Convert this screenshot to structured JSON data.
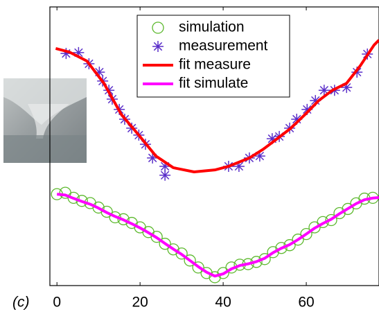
{
  "chart_data": {
    "type": "line",
    "panel_label": "(c)",
    "xlim": [
      -1.7,
      77.5
    ],
    "xticks": [
      0,
      20,
      40,
      60
    ],
    "ylim": [
      0,
      100
    ],
    "legend": "top",
    "series": [
      {
        "name": "simulation",
        "color": "#5cb82d",
        "style": "circle",
        "x": [
          0,
          2,
          4,
          6,
          8,
          10,
          12,
          14,
          16,
          18,
          20,
          22,
          24,
          26,
          28,
          30,
          32,
          34,
          36,
          38,
          40,
          42,
          44,
          46,
          48,
          50,
          52,
          54,
          56,
          58,
          60,
          62,
          64,
          66,
          68,
          70,
          72,
          74,
          76
        ],
        "values": [
          32.8,
          33.3,
          31.5,
          30.4,
          29.6,
          28,
          26.5,
          24.5,
          23.8,
          22.5,
          20.9,
          19.2,
          17.5,
          15,
          13,
          11.5,
          9,
          6.5,
          4.5,
          3,
          4.5,
          6.5,
          7.5,
          7.7,
          8.5,
          9.5,
          12,
          13.5,
          14.5,
          16.5,
          18.5,
          20.9,
          22.8,
          23.5,
          26,
          27.5,
          29.5,
          31.2,
          31.5
        ]
      },
      {
        "name": "measurement",
        "color": "#5b2fc9",
        "style": "star",
        "x": [
          2.2,
          5.2,
          7.7,
          10.2,
          11,
          12.5,
          13.3,
          15,
          16.3,
          18,
          19.7,
          21.3,
          23,
          26,
          26,
          41.3,
          43.8,
          46.3,
          48.8,
          51.8,
          53.5,
          56,
          57.7,
          60.2,
          62.2,
          64.3,
          66.8,
          69.7,
          72.2,
          74.7
        ],
        "values": [
          83.3,
          83.6,
          79.6,
          76.6,
          73.4,
          70.1,
          66.9,
          63.2,
          59.7,
          56.5,
          54,
          50.7,
          45.8,
          42.8,
          39.6,
          42.8,
          42.8,
          45.8,
          46.5,
          52.7,
          53.5,
          56.5,
          59.7,
          63.2,
          66.4,
          70.1,
          70.1,
          71.1,
          76.6,
          83.1
        ]
      },
      {
        "name": "fit measure",
        "color": "#ff0000",
        "style": "line",
        "x": [
          -0.3,
          3,
          7.2,
          11.3,
          15.5,
          19.7,
          23.8,
          28,
          33,
          38,
          41.3,
          46.3,
          49.7,
          53,
          56.3,
          59.7,
          63,
          66.3,
          69.7,
          73,
          76.3,
          77.5
        ],
        "values": [
          85.1,
          83.8,
          80.6,
          72.6,
          61.4,
          54,
          46.5,
          42.3,
          40.8,
          41.5,
          42.8,
          45.8,
          49,
          52.7,
          56.5,
          61.4,
          66.4,
          70.1,
          72.6,
          78.9,
          86.3,
          88.1
        ]
      },
      {
        "name": "fit simulate",
        "color": "#ff00ff",
        "style": "line",
        "x": [
          0,
          2,
          4,
          6,
          8,
          10,
          12,
          14,
          16,
          18,
          20,
          22,
          24,
          26,
          28,
          30,
          32,
          34,
          36,
          38,
          40,
          42,
          44,
          46,
          48,
          50,
          52,
          54,
          56,
          58,
          60,
          62,
          64,
          66,
          68,
          70,
          72,
          74,
          76,
          77.5
        ],
        "values": [
          32.8,
          32.5,
          31.3,
          30.2,
          29.2,
          27.8,
          26.2,
          24.8,
          23.6,
          22.2,
          20.7,
          19,
          17.2,
          15.1,
          13.1,
          11.2,
          9,
          6.8,
          4.8,
          3.4,
          4.2,
          6,
          7.2,
          7.8,
          8.6,
          9.8,
          11.8,
          13.4,
          14.7,
          16.5,
          18.5,
          20.6,
          22.3,
          23.8,
          25.8,
          27.6,
          29.4,
          30.8,
          31.4,
          31.6
        ]
      }
    ]
  }
}
